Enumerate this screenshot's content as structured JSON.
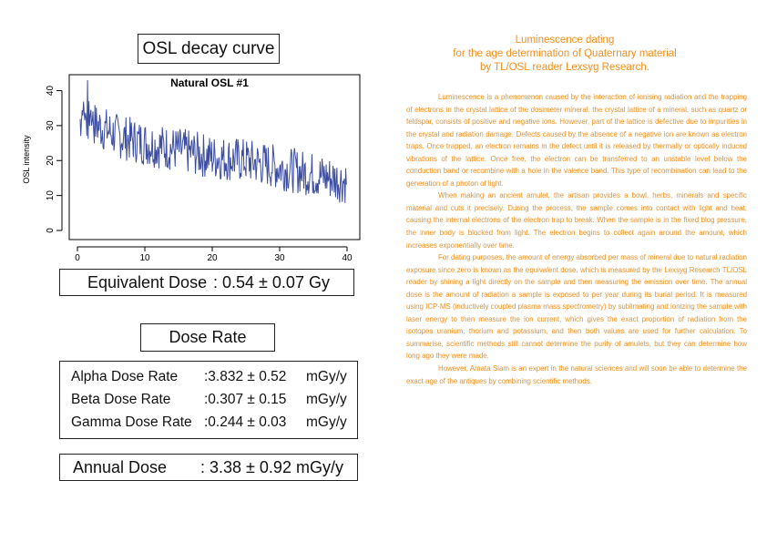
{
  "osl_title": "OSL decay curve",
  "chart_data": {
    "type": "line",
    "title": "Natural OSL #1",
    "xlabel": "",
    "ylabel": "OSL intensity",
    "xlim": [
      0,
      40
    ],
    "ylim": [
      0,
      43
    ],
    "x_ticks": [
      "0",
      "10",
      "20",
      "30",
      "40"
    ],
    "y_ticks": [
      "0",
      "10",
      "20",
      "30",
      "40"
    ],
    "series_color": "#3d4ea0",
    "trend": {
      "x": [
        0.5,
        3,
        6,
        10,
        15,
        20,
        25,
        30,
        35,
        40
      ],
      "y": [
        32,
        30,
        27,
        25,
        23,
        21,
        20,
        18,
        16,
        14
      ]
    },
    "noise_amplitude": 5
  },
  "equivalent_dose": {
    "label": "Equivalent Dose",
    "value": ": 0.54 ± 0.07  Gy"
  },
  "dose_rate_title": "Dose Rate",
  "dose_rates": [
    {
      "label": "Alpha Dose Rate",
      "value": ":3.832 ± 0.52",
      "unit": "mGy/y"
    },
    {
      "label": "Beta Dose Rate",
      "value": ":0.307 ± 0.15",
      "unit": "mGy/y"
    },
    {
      "label": "Gamma Dose Rate",
      "value": ":0.244 ± 0.03",
      "unit": "mGy/y"
    }
  ],
  "annual_dose": {
    "label": "Annual Dose",
    "value": ": 3.38 ± 0.92 mGy/y"
  },
  "article": {
    "title_lines": [
      "Luminescence dating",
      "for the age determination of Quaternary material",
      "by TL/OSL reader Lexsyg Research."
    ],
    "paragraphs": [
      "Luminescence is a phenomenon caused by the interaction of ionising radiation and the trapping of electrons in the crystal lattice of the dosimeter mineral. the crystal lattice of a mineral, such as quartz or feldspar, consists of positive and negative ions. However, part of the lattice is defective due to impurities in the crystal and radiation damage. Defects caused by the absence of a negative ion are known as electron traps. Once trapped, an electron remains in the defect until it is released by thermally or optically induced vibrations of the lattice. Once free, the electron can be transferred to an unstable level below the conduction band or recombine with a hole in the valence band. This type of recombination can lead to the generation of a photon of light.",
      "When making an ancient amulet, the artisan provides a bowl, herbs, minerals and specific material and cuts it precisely. During the process, the sample comes into contact with light and heat, causing the internal electrons of the electron trap to break. When the sample is in the fixed blog pressure, the inner body is blocked from light. The electron begins to collect again around the amount, which increases exponentially over time.",
      "For dating purposes, the amount of energy absorbed per mass of mineral due to natural radiation exposure since zero is known as the equivalent dose, which is measured by the Lexsyg Research TL/OSL reader by shining a light directly on the sample and then measuring the emission over time. The annual dose is the amount of radiation a sample is exposed to per year during its burial period. It is measured using ICP-MS (inductively coupled plasma mass spectrometry) by sublimating and ionizing the sample with laser energy to then measure the ion current, which gives the exact proportion of radiation from the isotopes uranium, thorium and potassium, and then both values are used for further calculation. To summarise, scientific methods still cannot determine the purity of amulets, but they can determine how long ago they were made.",
      "However, Amata Siam is an expert in the natural sciences and will soon be able to determine the exact age of the antiques by combining scientific methods."
    ]
  }
}
